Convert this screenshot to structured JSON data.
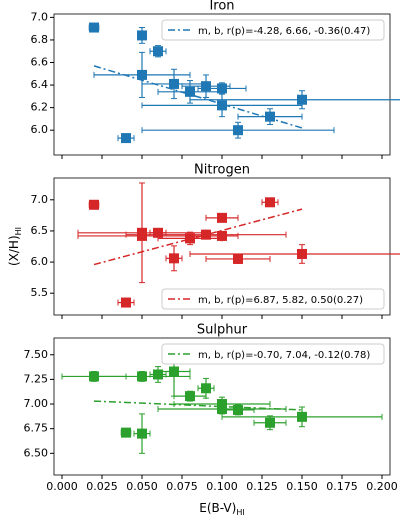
{
  "chart_data": [
    {
      "type": "scatter",
      "title": "Iron",
      "color": "#1f77b4",
      "legend": "upper right",
      "xlim": [
        -0.005,
        0.205
      ],
      "xticks": [
        0,
        0.025,
        0.05,
        0.075,
        0.1,
        0.125,
        0.15,
        0.175,
        0.2
      ],
      "ylim": [
        5.78,
        7.03
      ],
      "yticks": [
        {
          "value": 6,
          "label": "6.0"
        },
        6.2,
        6.4,
        6.6,
        6.8,
        {
          "value": 7,
          "label": "7.0"
        }
      ],
      "x": [
        0.02,
        0.05,
        0.06,
        0.05,
        0.07,
        0.08,
        0.09,
        0.1,
        0.1,
        0.11,
        0.04,
        0.13,
        0.15
      ],
      "values": [
        6.91,
        6.84,
        6.7,
        6.49,
        6.41,
        6.34,
        6.39,
        6.37,
        6.22,
        6.0,
        5.93,
        6.12,
        6.27
      ],
      "xerr": [
        0.003,
        0.002,
        0.005,
        0.03,
        0.02,
        0.02,
        0.015,
        0.015,
        0.05,
        0.06,
        0.005,
        0.02,
        0.07
      ],
      "yerr": [
        0.02,
        0.07,
        0.05,
        0.2,
        0.13,
        0.1,
        0.1,
        0.05,
        0.1,
        0.07,
        0.02,
        0.07,
        0.08
      ],
      "fit": {
        "name": "m, b, r(p)=-4.28, 6.66, -0.36(0.47)",
        "x": [
          0.02,
          0.15
        ],
        "values": [
          6.57,
          6.02
        ]
      }
    },
    {
      "type": "scatter",
      "title": "Nitrogen",
      "color": "#d62728",
      "legend": "lower right",
      "ylabel": {
        "text": "(X/H)",
        "sub": "HI"
      },
      "xlim": [
        -0.005,
        0.205
      ],
      "xticks": [
        0,
        0.025,
        0.05,
        0.075,
        0.1,
        0.125,
        0.15,
        0.175,
        0.2
      ],
      "ylim": [
        5.15,
        7.35
      ],
      "yticks": [
        5.5,
        {
          "value": 6,
          "label": "6.0"
        },
        6.5,
        {
          "value": 7,
          "label": "7.0"
        }
      ],
      "x": [
        0.02,
        0.05,
        0.05,
        0.06,
        0.07,
        0.08,
        0.09,
        0.1,
        0.1,
        0.11,
        0.04,
        0.13,
        0.15
      ],
      "values": [
        6.92,
        6.47,
        6.42,
        6.47,
        6.06,
        6.38,
        6.44,
        6.71,
        6.42,
        6.05,
        5.35,
        6.96,
        6.13
      ],
      "xerr": [
        0.003,
        0.04,
        0.04,
        0.005,
        0.005,
        0.02,
        0.05,
        0.01,
        0.01,
        0.02,
        0.005,
        0.005,
        0.07
      ],
      "yerr": [
        0.04,
        0.8,
        0.05,
        0.05,
        0.2,
        0.1,
        0.07,
        0.04,
        0.07,
        0.07,
        0.02,
        0.03,
        0.15
      ],
      "fit": {
        "name": "m, b, r(p)=6.87, 5.82, 0.50(0.27)",
        "x": [
          0.02,
          0.15
        ],
        "values": [
          5.96,
          6.85
        ]
      }
    },
    {
      "type": "scatter",
      "title": "Sulphur",
      "color": "#2ca02c",
      "legend": "upper right",
      "xlabel": {
        "text": "E(B-V)",
        "sub": "HI"
      },
      "xlim": [
        -0.005,
        0.205
      ],
      "xticks": [
        {
          "value": 0,
          "label": "0.000"
        },
        0.025,
        {
          "value": 0.05,
          "label": "0.050"
        },
        0.075,
        {
          "value": 0.1,
          "label": "0.100"
        },
        0.125,
        {
          "value": 0.15,
          "label": "0.150"
        },
        0.175,
        {
          "value": 0.2,
          "label": "0.200"
        }
      ],
      "ylim": [
        6.28,
        7.67
      ],
      "yticks": [
        {
          "value": 6.5,
          "label": "6.50"
        },
        6.75,
        {
          "value": 7,
          "label": "7.00"
        },
        7.25,
        {
          "value": 7.5,
          "label": "7.50"
        }
      ],
      "x": [
        0.02,
        0.05,
        0.06,
        0.07,
        0.08,
        0.09,
        0.1,
        0.1,
        0.11,
        0.04,
        0.05,
        0.13,
        0.15
      ],
      "values": [
        7.28,
        7.28,
        7.3,
        7.33,
        7.08,
        7.16,
        7.0,
        6.95,
        6.94,
        6.71,
        6.7,
        6.81,
        6.87
      ],
      "xerr": [
        0.02,
        0.03,
        0.005,
        0.01,
        0.01,
        0.005,
        0.03,
        0.04,
        0.01,
        0.003,
        0.005,
        0.01,
        0.05
      ],
      "yerr": [
        0.05,
        0.05,
        0.08,
        0.25,
        0.05,
        0.1,
        0.07,
        0.05,
        0.05,
        0.03,
        0.2,
        0.07,
        0.1
      ],
      "fit": {
        "name": "m, b, r(p)=-0.70, 7.04, -0.12(0.78)",
        "x": [
          0.02,
          0.15
        ],
        "values": [
          7.03,
          6.94
        ]
      }
    }
  ]
}
